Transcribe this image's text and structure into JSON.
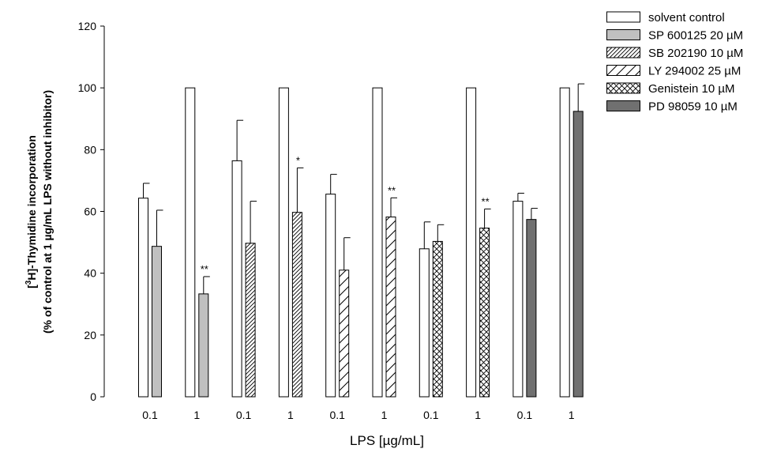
{
  "chart_data": {
    "type": "bar",
    "title": "",
    "xlabel": "LPS [µg/mL]",
    "ylabel_line1_prefix": "[",
    "ylabel_line1_sup": "3",
    "ylabel_line1_suffix": "H]-Thymidine incorporation",
    "ylabel_line2": "(% of control at 1 µg/mL LPS without inhibitor)",
    "ylim": [
      0,
      120
    ],
    "yticks": [
      0,
      20,
      40,
      60,
      80,
      100,
      120
    ],
    "grid": false,
    "legend_position": "top-right",
    "categories": [
      "0.1",
      "1",
      "0.1",
      "1",
      "0.1",
      "1",
      "0.1",
      "1",
      "0.1",
      "1"
    ],
    "series": [
      {
        "name": "solvent control",
        "pattern": "none",
        "fill": "#ffffff"
      },
      {
        "name": "SP 600125 20 µM",
        "pattern": "solid",
        "fill": "#c0c0c0"
      },
      {
        "name": "SB 202190 10 µM",
        "pattern": "dense-diagonal",
        "fill": "#ffffff"
      },
      {
        "name": "LY 294002 25 µM",
        "pattern": "sparse-diagonal",
        "fill": "#ffffff"
      },
      {
        "name": "Genistein 10 µM",
        "pattern": "crosshatch",
        "fill": "#ffffff"
      },
      {
        "name": "PD 98059 10 µM",
        "pattern": "solid",
        "fill": "#707070"
      }
    ],
    "bars": [
      {
        "group": 0,
        "series": 0,
        "value": 64.3,
        "error": 4.8,
        "sig": ""
      },
      {
        "group": 0,
        "series": 1,
        "value": 48.7,
        "error": 11.7,
        "sig": ""
      },
      {
        "group": 1,
        "series": 0,
        "value": 100,
        "error": 0,
        "sig": ""
      },
      {
        "group": 1,
        "series": 1,
        "value": 33.3,
        "error": 5.6,
        "sig": "**"
      },
      {
        "group": 2,
        "series": 0,
        "value": 76.4,
        "error": 13.1,
        "sig": ""
      },
      {
        "group": 2,
        "series": 2,
        "value": 49.7,
        "error": 13.6,
        "sig": ""
      },
      {
        "group": 3,
        "series": 0,
        "value": 100,
        "error": 0,
        "sig": ""
      },
      {
        "group": 3,
        "series": 2,
        "value": 59.7,
        "error": 14.4,
        "sig": "*"
      },
      {
        "group": 4,
        "series": 0,
        "value": 65.6,
        "error": 6.4,
        "sig": ""
      },
      {
        "group": 4,
        "series": 3,
        "value": 41.0,
        "error": 10.5,
        "sig": ""
      },
      {
        "group": 5,
        "series": 0,
        "value": 100,
        "error": 0,
        "sig": ""
      },
      {
        "group": 5,
        "series": 3,
        "value": 58.2,
        "error": 6.2,
        "sig": "**"
      },
      {
        "group": 6,
        "series": 0,
        "value": 47.9,
        "error": 8.7,
        "sig": ""
      },
      {
        "group": 6,
        "series": 4,
        "value": 50.3,
        "error": 5.4,
        "sig": ""
      },
      {
        "group": 7,
        "series": 0,
        "value": 100,
        "error": 0,
        "sig": ""
      },
      {
        "group": 7,
        "series": 4,
        "value": 54.6,
        "error": 6.2,
        "sig": "**"
      },
      {
        "group": 8,
        "series": 0,
        "value": 63.3,
        "error": 2.6,
        "sig": ""
      },
      {
        "group": 8,
        "series": 5,
        "value": 57.4,
        "error": 3.6,
        "sig": ""
      },
      {
        "group": 9,
        "series": 0,
        "value": 100,
        "error": 0,
        "sig": ""
      },
      {
        "group": 9,
        "series": 5,
        "value": 92.4,
        "error": 8.9,
        "sig": ""
      }
    ]
  }
}
